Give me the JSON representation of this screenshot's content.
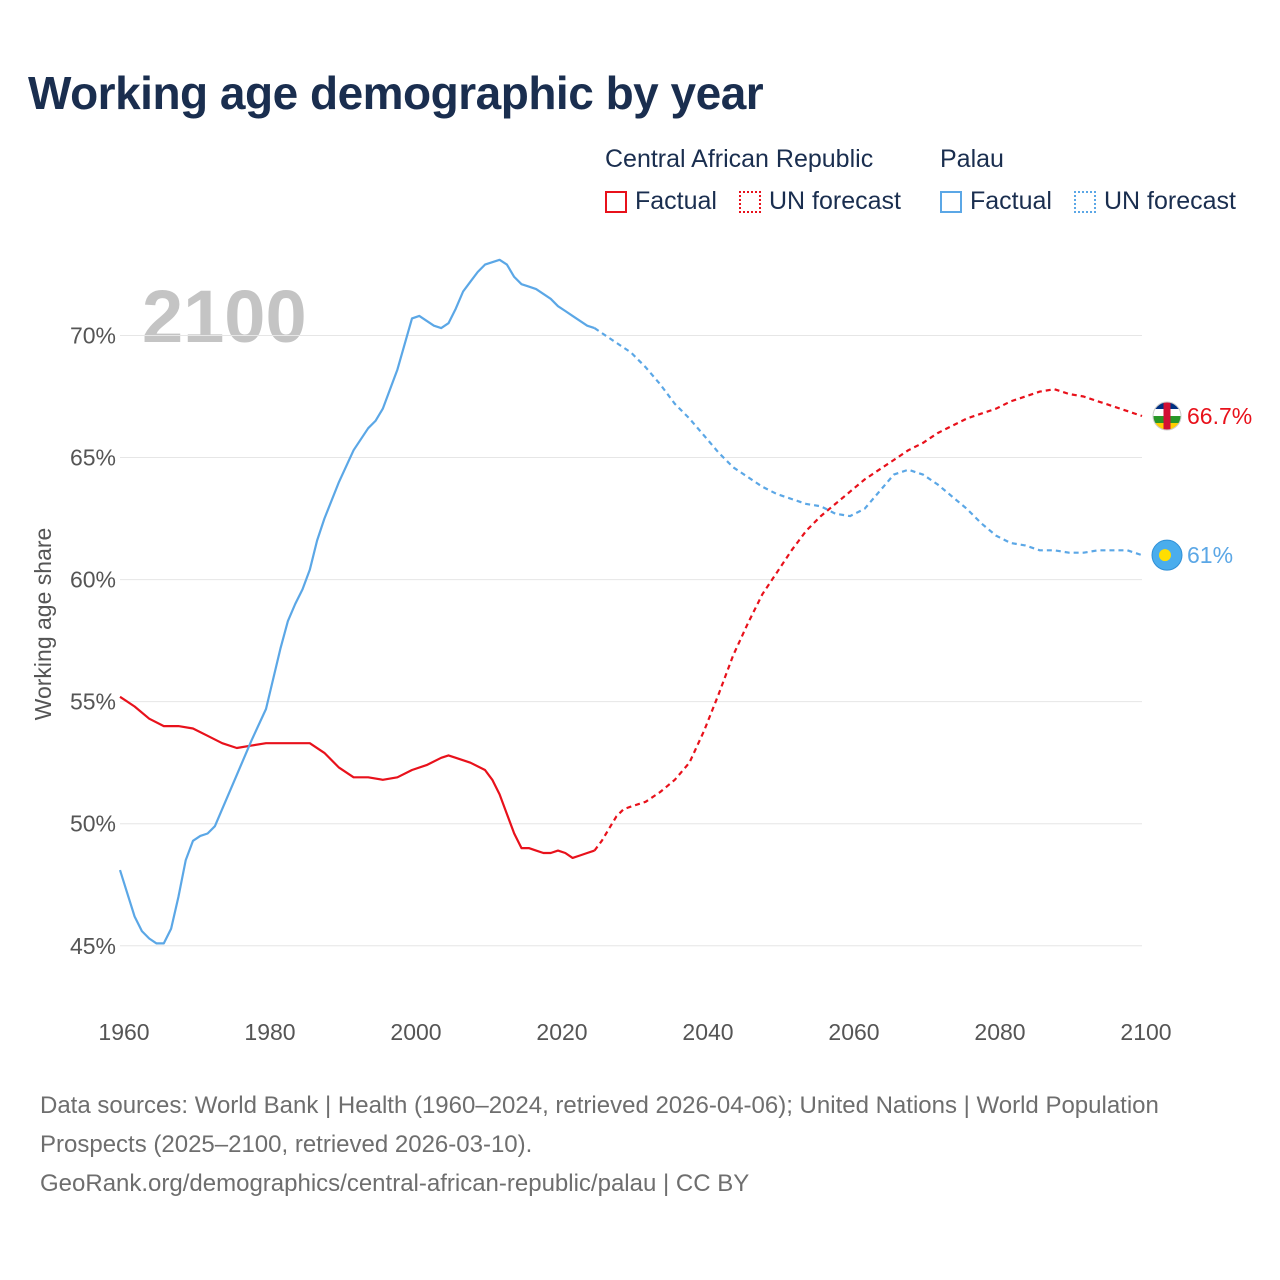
{
  "title": "Working age demographic by year",
  "legend": {
    "groups": [
      {
        "name": "Central African Republic",
        "color": "#e8111b",
        "factual_label": "Factual",
        "forecast_label": "UN forecast"
      },
      {
        "name": "Palau",
        "color": "#5ba7e6",
        "factual_label": "Factual",
        "forecast_label": "UN forecast"
      }
    ]
  },
  "year_watermark": "2100",
  "footer": {
    "sources": "Data sources: World Bank | Health (1960–2024, retrieved 2026-04-06); United Nations | World Population Prospects (2025–2100, retrieved 2026-03-10).",
    "link": "GeoRank.org/demographics/central-african-republic/palau | CC BY"
  },
  "chart_data": {
    "type": "line",
    "title": "Working age demographic by year",
    "xlabel": "",
    "ylabel": "Working age share",
    "xlim": [
      1960,
      2100
    ],
    "ylim": [
      44.5,
      73.5
    ],
    "xticks": [
      1960,
      1980,
      2000,
      2020,
      2040,
      2060,
      2080,
      2100
    ],
    "yticks": [
      45,
      50,
      55,
      60,
      65,
      70
    ],
    "ytick_labels": [
      "45%",
      "50%",
      "55%",
      "60%",
      "65%",
      "70%"
    ],
    "factual_end_year": 2025,
    "series": [
      {
        "name": "Central African Republic",
        "color": "#e8111b",
        "end_label": "66.7%",
        "flag_icon": "central-african-republic-flag-icon",
        "x": [
          1960,
          1962,
          1964,
          1966,
          1968,
          1970,
          1972,
          1974,
          1976,
          1978,
          1980,
          1982,
          1984,
          1986,
          1988,
          1990,
          1992,
          1994,
          1996,
          1998,
          2000,
          2002,
          2004,
          2005,
          2006,
          2008,
          2010,
          2011,
          2012,
          2013,
          2014,
          2015,
          2016,
          2017,
          2018,
          2019,
          2020,
          2021,
          2022,
          2023,
          2024,
          2025,
          2026,
          2027,
          2028,
          2029,
          2030,
          2032,
          2034,
          2036,
          2038,
          2040,
          2042,
          2044,
          2046,
          2048,
          2050,
          2052,
          2054,
          2056,
          2058,
          2060,
          2062,
          2064,
          2066,
          2068,
          2070,
          2072,
          2074,
          2076,
          2078,
          2080,
          2082,
          2084,
          2086,
          2088,
          2090,
          2092,
          2094,
          2096,
          2098,
          2100
        ],
        "values": [
          55.2,
          54.8,
          54.3,
          54.0,
          54.0,
          53.9,
          53.6,
          53.3,
          53.1,
          53.2,
          53.3,
          53.3,
          53.3,
          53.3,
          52.9,
          52.3,
          51.9,
          51.9,
          51.8,
          51.9,
          52.2,
          52.4,
          52.7,
          52.8,
          52.7,
          52.5,
          52.2,
          51.8,
          51.2,
          50.4,
          49.6,
          49.0,
          49.0,
          48.9,
          48.8,
          48.8,
          48.9,
          48.8,
          48.6,
          48.7,
          48.8,
          48.9,
          49.3,
          49.8,
          50.3,
          50.6,
          50.7,
          50.9,
          51.3,
          51.8,
          52.5,
          53.8,
          55.3,
          56.9,
          58.2,
          59.4,
          60.3,
          61.2,
          62.0,
          62.6,
          63.1,
          63.6,
          64.1,
          64.5,
          64.9,
          65.3,
          65.6,
          66.0,
          66.3,
          66.6,
          66.8,
          67.0,
          67.3,
          67.5,
          67.7,
          67.8,
          67.6,
          67.5,
          67.3,
          67.1,
          66.9,
          66.7
        ]
      },
      {
        "name": "Palau",
        "color": "#5ba7e6",
        "end_label": "61%",
        "flag_icon": "palau-flag-icon",
        "x": [
          1960,
          1962,
          1963,
          1964,
          1965,
          1966,
          1967,
          1968,
          1969,
          1970,
          1971,
          1972,
          1973,
          1974,
          1976,
          1978,
          1980,
          1982,
          1983,
          1984,
          1985,
          1986,
          1987,
          1988,
          1990,
          1992,
          1994,
          1995,
          1996,
          1998,
          2000,
          2001,
          2002,
          2003,
          2004,
          2005,
          2006,
          2007,
          2008,
          2009,
          2010,
          2011,
          2012,
          2013,
          2014,
          2015,
          2016,
          2017,
          2018,
          2019,
          2020,
          2021,
          2022,
          2023,
          2024,
          2025,
          2026,
          2028,
          2030,
          2032,
          2034,
          2036,
          2038,
          2040,
          2042,
          2044,
          2046,
          2048,
          2050,
          2052,
          2054,
          2056,
          2058,
          2060,
          2062,
          2064,
          2066,
          2068,
          2070,
          2072,
          2074,
          2076,
          2078,
          2080,
          2082,
          2084,
          2086,
          2088,
          2090,
          2092,
          2094,
          2096,
          2098,
          2100
        ],
        "values": [
          48.1,
          46.2,
          45.6,
          45.3,
          45.1,
          45.1,
          45.7,
          47.0,
          48.5,
          49.3,
          49.5,
          49.6,
          49.9,
          50.6,
          52.0,
          53.4,
          54.7,
          57.2,
          58.3,
          59.0,
          59.6,
          60.4,
          61.6,
          62.5,
          64.0,
          65.3,
          66.2,
          66.5,
          67.0,
          68.6,
          70.7,
          70.8,
          70.6,
          70.4,
          70.3,
          70.5,
          71.1,
          71.8,
          72.2,
          72.6,
          72.9,
          73.0,
          73.1,
          72.9,
          72.4,
          72.1,
          72.0,
          71.9,
          71.7,
          71.5,
          71.2,
          71.0,
          70.8,
          70.6,
          70.4,
          70.3,
          70.1,
          69.7,
          69.3,
          68.7,
          68.0,
          67.2,
          66.6,
          65.9,
          65.2,
          64.6,
          64.2,
          63.8,
          63.5,
          63.3,
          63.1,
          63.0,
          62.7,
          62.6,
          62.9,
          63.6,
          64.3,
          64.5,
          64.3,
          63.9,
          63.4,
          62.9,
          62.3,
          61.8,
          61.5,
          61.4,
          61.2,
          61.2,
          61.1,
          61.1,
          61.2,
          61.2,
          61.2,
          61.0
        ]
      }
    ]
  }
}
